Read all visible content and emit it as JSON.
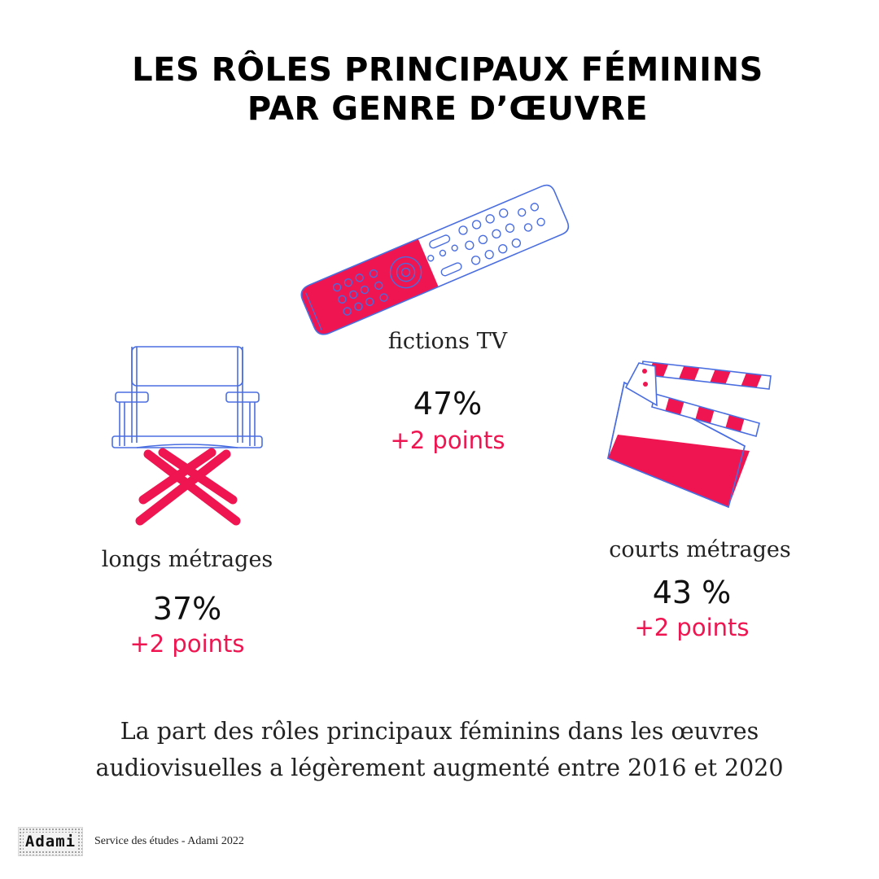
{
  "title": {
    "line1": "LES RÔLES PRINCIPAUX FÉMININS",
    "line2": "PAR GENRE D’ŒUVRE"
  },
  "categories": [
    {
      "label": "fictions TV",
      "value": "47%",
      "change": "+2 points",
      "icon": "tv-remote-icon",
      "share": 0.47
    },
    {
      "label": "longs métrages",
      "value": "37%",
      "change": "+2 points",
      "icon": "director-chair-icon",
      "share": 0.37
    },
    {
      "label": "courts métrages",
      "value": "43 %",
      "change": "+2 points",
      "icon": "clapperboard-icon",
      "share": 0.43
    }
  ],
  "caption": {
    "line1": "La part des rôles principaux féminins dans les œuvres",
    "line2": "audiovisuelles a légèrement augmenté entre 2016 et 2020"
  },
  "footer": {
    "logo": "Adami",
    "source": "Service des études - Adami 2022"
  },
  "colors": {
    "accent": "#ee1550",
    "outline": "#4a6ee0",
    "text": "#111111"
  }
}
